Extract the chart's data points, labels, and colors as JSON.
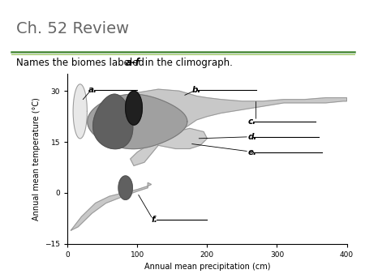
{
  "title": "Ch. 52 Review",
  "subtitle_normal": "Names the biomes labeled ",
  "subtitle_italic": "a-f",
  "subtitle_end": " in the climograph.",
  "xlabel": "Annual mean precipitation (cm)",
  "ylabel": "Annual mean temperature (°C)",
  "xlim": [
    0,
    400
  ],
  "ylim": [
    -15,
    35
  ],
  "xticks": [
    0,
    100,
    200,
    300,
    400
  ],
  "yticks": [
    -15,
    0,
    15,
    30
  ],
  "label_a": "a.",
  "label_b": "b.",
  "label_c": "c.",
  "label_d": "d.",
  "label_e": "e.",
  "label_f": "f.",
  "color_light_gray": "#c8c8c8",
  "color_mid_gray": "#a0a0a0",
  "color_dark_gray": "#606060",
  "color_very_dark": "#202020",
  "color_white_oval": "#e8e8e8",
  "line_color": "#888888",
  "title_color": "#666666",
  "green_line": "#4a8a3a",
  "border_color": "#cccccc"
}
